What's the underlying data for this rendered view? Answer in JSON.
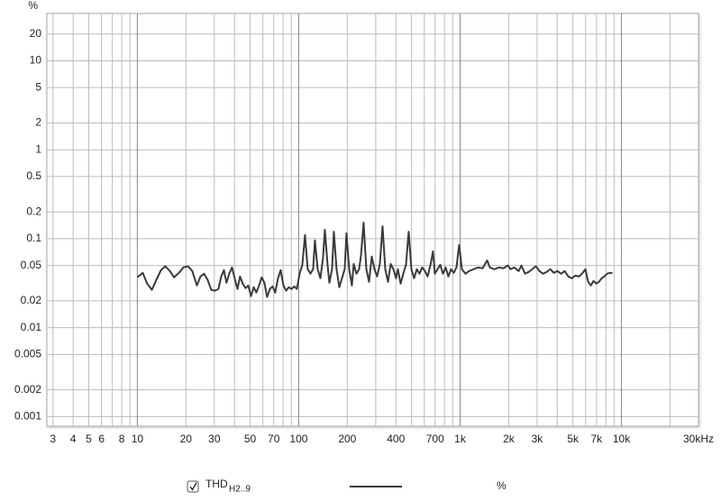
{
  "chart_data": {
    "type": "line",
    "log_x": true,
    "log_y": true,
    "grid": true,
    "y_label": "%",
    "xlim": [
      2.75,
      30000
    ],
    "ylim": [
      0.00078,
      34
    ],
    "xticks": [
      3,
      4,
      5,
      6,
      8,
      10,
      20,
      30,
      50,
      70,
      100,
      200,
      400,
      700,
      {
        "value": 1000,
        "label": "1k"
      },
      {
        "value": 2000,
        "label": "2k"
      },
      {
        "value": 3000,
        "label": "3k"
      },
      {
        "value": 5000,
        "label": "5k"
      },
      {
        "value": 7000,
        "label": "7k"
      },
      {
        "value": 10000,
        "label": "10k"
      },
      {
        "value": 30000,
        "label": "30kHz"
      }
    ],
    "xminor": [
      7,
      9,
      40,
      60,
      80,
      90,
      300,
      500,
      600,
      800,
      900,
      4000,
      6000,
      8000,
      9000,
      20000
    ],
    "yticks": [
      0.001,
      0.002,
      0.005,
      0.01,
      0.02,
      0.05,
      0.1,
      0.2,
      0.5,
      1,
      2,
      5,
      10,
      20
    ],
    "x": [
      10,
      10.8,
      11.5,
      12.3,
      13.1,
      14.0,
      14.9,
      15.9,
      16.9,
      18.1,
      19.3,
      20.6,
      21.9,
      23.4,
      24.6,
      25.9,
      27.3,
      28.7,
      30.2,
      31.8,
      33.1,
      34.4,
      35.7,
      37.1,
      38.6,
      40.1,
      41.7,
      43.3,
      45.0,
      46.8,
      48.7,
      50.6,
      52.6,
      54.6,
      56.8,
      59.0,
      61.3,
      63.7,
      66.3,
      68.9,
      71.5,
      74.4,
      77.3,
      80.4,
      83.5,
      86.8,
      90.2,
      93.8,
      97.4,
      101.3,
      105.3,
      109.4,
      113.7,
      118.2,
      122.8,
      126.0,
      131.0,
      136.2,
      141.5,
      145.2,
      151.0,
      154.9,
      160.9,
      165.1,
      171.6,
      178.4,
      185.4,
      192.7,
      197.7,
      205.5,
      213.6,
      219.2,
      227.8,
      236.7,
      243.0,
      252.4,
      262.4,
      272.8,
      283.5,
      294.7,
      306.2,
      318.3,
      330.8,
      343.8,
      357.4,
      371.4,
      386.0,
      401.2,
      411.7,
      427.9,
      444.6,
      462.1,
      480.3,
      499.2,
      518.8,
      539.2,
      560.4,
      582.4,
      605.3,
      629.1,
      653.8,
      679.5,
      697.4,
      724.8,
      753.3,
      782.9,
      813.7,
      845.6,
      879.0,
      913.5,
      949.4,
      987,
      1026,
      1080,
      1137,
      1213,
      1293,
      1379,
      1471,
      1529,
      1631,
      1739,
      1854,
      1978,
      2055,
      2164,
      2307,
      2398,
      2525,
      2658,
      2799,
      2947,
      3102,
      3266,
      3439,
      3621,
      3811,
      4013,
      4225,
      4446,
      4681,
      4928,
      5188,
      5462,
      5752,
      5977,
      6213,
      6458,
      6713,
      6977,
      7250,
      7536,
      7834,
      8141,
      8461,
      8796
    ],
    "series": [
      {
        "name": "THD",
        "name_subscript": "H2..9",
        "unit": "%",
        "color": "#3a3a3a",
        "values": [
          0.0368,
          0.0413,
          0.0313,
          0.0266,
          0.0343,
          0.0443,
          0.049,
          0.0433,
          0.0368,
          0.0413,
          0.0475,
          0.049,
          0.0433,
          0.0298,
          0.0376,
          0.0404,
          0.0343,
          0.0266,
          0.026,
          0.0272,
          0.0376,
          0.0443,
          0.032,
          0.0404,
          0.0475,
          0.0359,
          0.0272,
          0.0376,
          0.0313,
          0.0278,
          0.0298,
          0.0226,
          0.0285,
          0.0248,
          0.0298,
          0.0368,
          0.032,
          0.0221,
          0.0272,
          0.0291,
          0.0248,
          0.0359,
          0.0443,
          0.0298,
          0.026,
          0.0285,
          0.0272,
          0.0291,
          0.0272,
          0.0404,
          0.051,
          0.11,
          0.0454,
          0.0404,
          0.0454,
          0.0955,
          0.0454,
          0.0359,
          0.061,
          0.126,
          0.05,
          0.032,
          0.0454,
          0.12,
          0.0454,
          0.0285,
          0.0359,
          0.0454,
          0.115,
          0.0454,
          0.0298,
          0.052,
          0.0404,
          0.0454,
          0.064,
          0.152,
          0.0454,
          0.0327,
          0.063,
          0.0454,
          0.0376,
          0.052,
          0.138,
          0.0454,
          0.0327,
          0.052,
          0.0454,
          0.0359,
          0.0454,
          0.0313,
          0.0404,
          0.051,
          0.12,
          0.0454,
          0.0359,
          0.0454,
          0.0404,
          0.0475,
          0.0433,
          0.0376,
          0.05,
          0.072,
          0.0404,
          0.0454,
          0.051,
          0.0404,
          0.0475,
          0.0376,
          0.0454,
          0.0413,
          0.0475,
          0.085,
          0.0454,
          0.0404,
          0.0433,
          0.0454,
          0.0475,
          0.0465,
          0.057,
          0.0475,
          0.0454,
          0.0475,
          0.0465,
          0.05,
          0.0454,
          0.0475,
          0.0433,
          0.05,
          0.0404,
          0.0423,
          0.0454,
          0.049,
          0.0433,
          0.0404,
          0.0423,
          0.0454,
          0.0413,
          0.0433,
          0.0404,
          0.0433,
          0.0376,
          0.0359,
          0.0385,
          0.0376,
          0.0413,
          0.0454,
          0.0327,
          0.0298,
          0.0335,
          0.0313,
          0.0327,
          0.0359,
          0.0376,
          0.0404,
          0.0413,
          0.0413
        ]
      }
    ]
  }
}
